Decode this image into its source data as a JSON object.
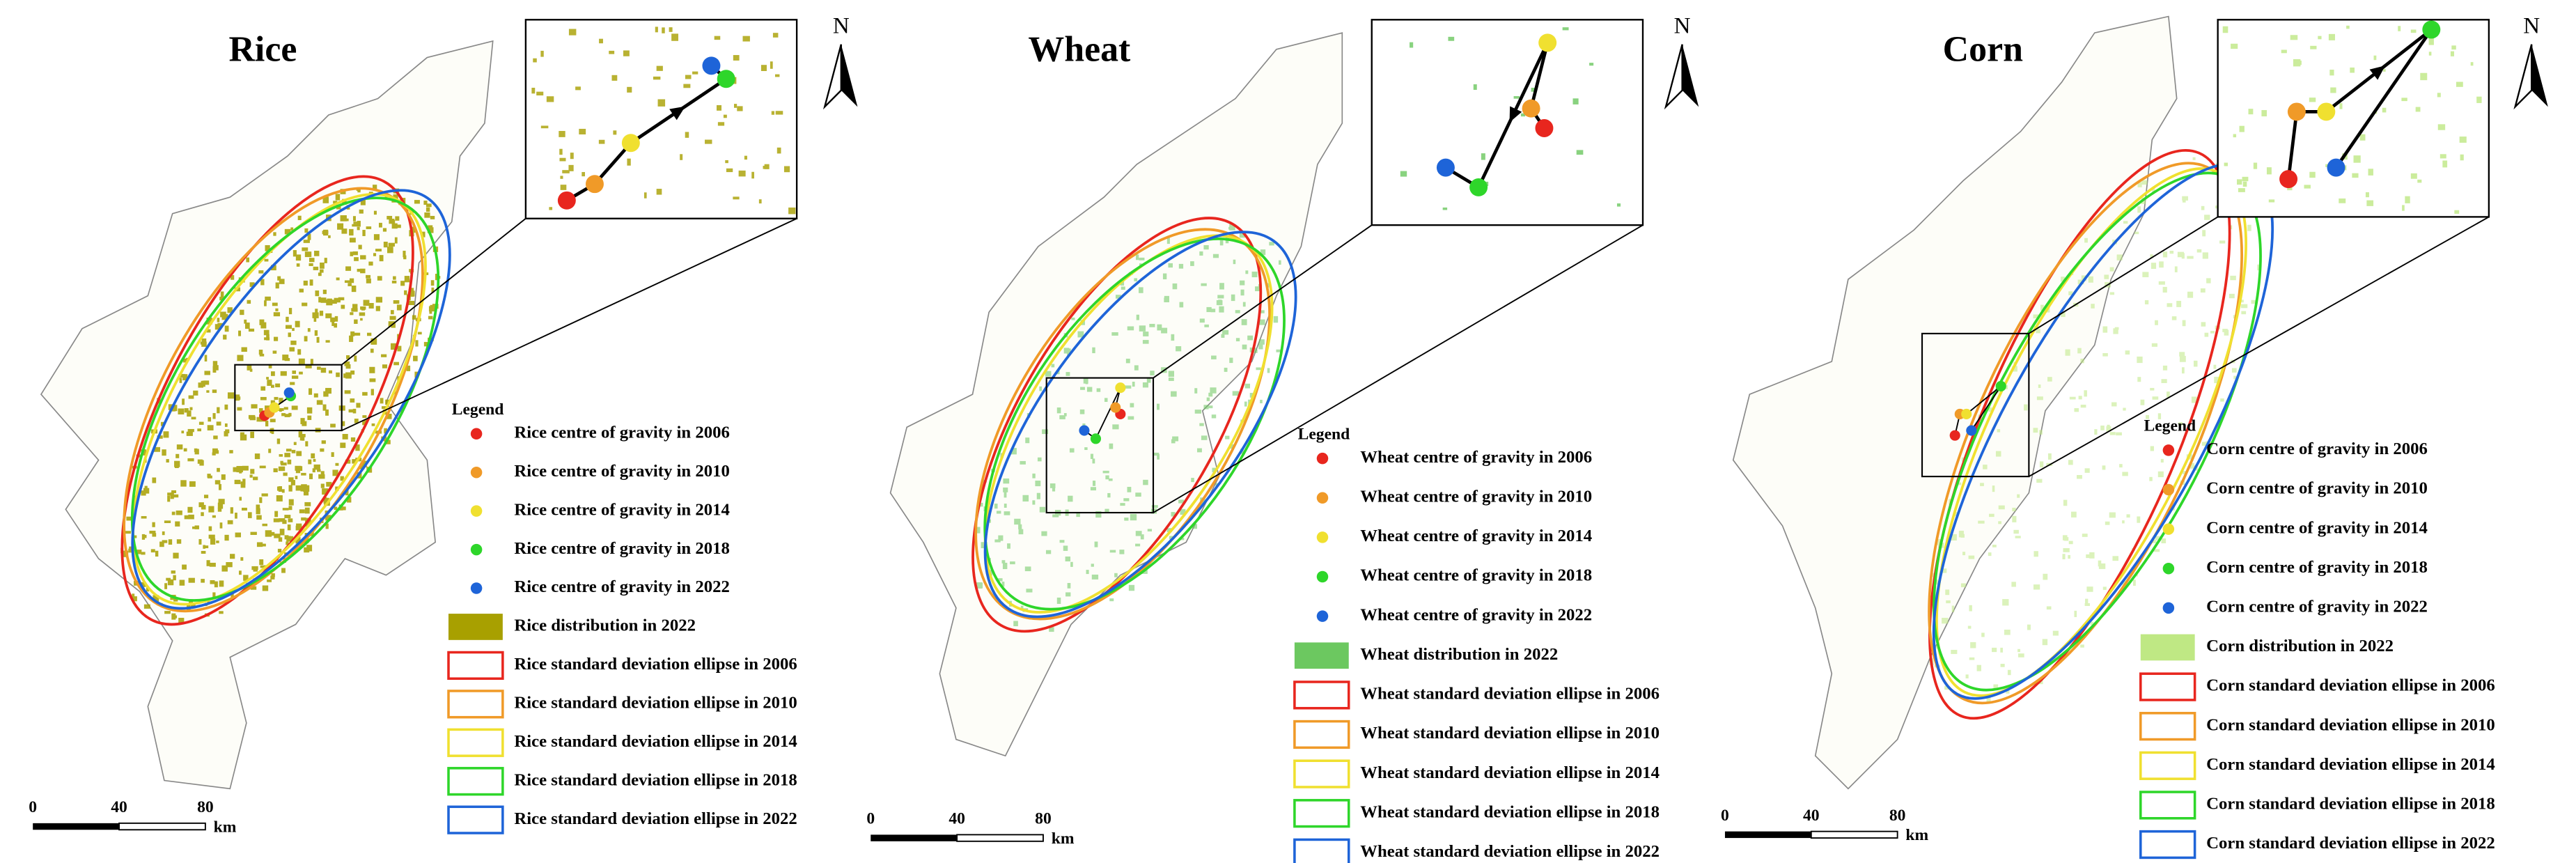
{
  "panels": [
    {
      "title": "Rice",
      "north": "N",
      "legend": {
        "title": "Legend",
        "items": [
          "Rice centre of gravity in 2006",
          "Rice centre of gravity in 2010",
          "Rice centre of gravity in 2014",
          "Rice centre of gravity in 2018",
          "Rice centre of gravity in 2022",
          "Rice distribution in 2022",
          "Rice standard deviation ellipse in 2006",
          "Rice standard deviation ellipse in 2010",
          "Rice standard deviation ellipse in 2014",
          "Rice standard deviation ellipse in 2018",
          "Rice standard deviation ellipse in 2022"
        ]
      },
      "scale_bar": {
        "ticks": [
          0,
          40,
          80
        ],
        "unit": "km"
      }
    },
    {
      "title": "Wheat",
      "north": "N",
      "legend": {
        "title": "Legend",
        "items": [
          "Wheat centre of gravity in 2006",
          "Wheat centre of gravity in 2010",
          "Wheat centre of gravity in 2014",
          "Wheat centre of gravity in 2018",
          "Wheat centre of gravity in 2022",
          "Wheat distribution in 2022",
          "Wheat standard deviation ellipse in 2006",
          "Wheat standard deviation ellipse in 2010",
          "Wheat standard deviation ellipse in 2014",
          "Wheat standard deviation ellipse in 2018",
          "Wheat standard deviation ellipse in 2022"
        ]
      },
      "scale_bar": {
        "ticks": [
          0,
          40,
          80
        ],
        "unit": "km"
      }
    },
    {
      "title": "Corn",
      "north": "N",
      "legend": {
        "title": "Legend",
        "items": [
          "Corn centre of gravity in 2006",
          "Corn centre of gravity in 2010",
          "Corn centre of gravity in 2014",
          "Corn centre of gravity in 2018",
          "Corn centre of gravity in 2022",
          "Corn distribution in 2022",
          "Corn standard deviation ellipse in 2006",
          "Corn standard deviation ellipse in 2010",
          "Corn standard deviation ellipse in 2014",
          "Corn standard deviation ellipse in 2018",
          "Corn standard deviation ellipse in 2022"
        ]
      },
      "scale_bar": {
        "ticks": [
          0,
          40,
          80
        ],
        "unit": "km"
      }
    }
  ]
}
